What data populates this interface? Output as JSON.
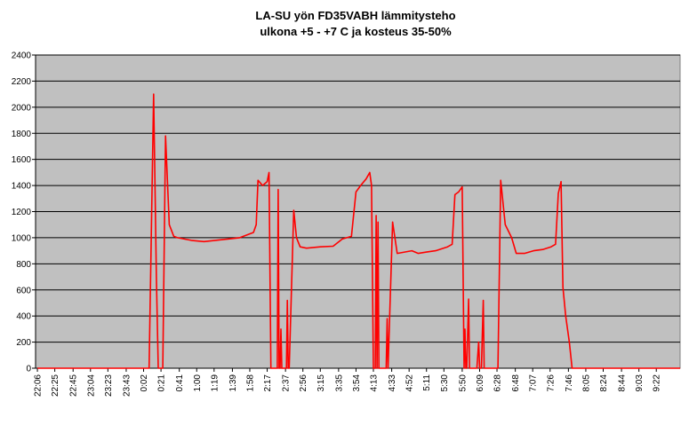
{
  "chart_data": {
    "type": "line",
    "title": [
      "LA-SU yön FD35VABH lämmitysteho",
      "ulkona +5 - +7 C ja kosteus 35-50%"
    ],
    "x": [
      0,
      122,
      127,
      130,
      132,
      137,
      140,
      144,
      149,
      153,
      168,
      182,
      202,
      221,
      236,
      239,
      241,
      246,
      251,
      253,
      255,
      260,
      262,
      263,
      264,
      265,
      266,
      267,
      272,
      273,
      274,
      275,
      280,
      283,
      287,
      294,
      309,
      323,
      333,
      343,
      348,
      353,
      359,
      363,
      365,
      367,
      369,
      370,
      371,
      372,
      373,
      374,
      381,
      382,
      383,
      388,
      393,
      401,
      409,
      416,
      425,
      435,
      448,
      453,
      456,
      460,
      464,
      466,
      467,
      468,
      469,
      471,
      472,
      473,
      480,
      482,
      483,
      485,
      487,
      488,
      503,
      506,
      511,
      518,
      523,
      532,
      542,
      552,
      561,
      566,
      569,
      572,
      574,
      577,
      581,
      584,
      702
    ],
    "series": [
      {
        "name": "lämmitysteho",
        "color": "#ff0000",
        "values": [
          0,
          0,
          2100,
          700,
          0,
          0,
          1780,
          1100,
          1010,
          1000,
          980,
          970,
          985,
          1000,
          1040,
          1100,
          1440,
          1400,
          1430,
          1500,
          0,
          0,
          0,
          1370,
          0,
          0,
          300,
          0,
          0,
          520,
          0,
          0,
          1210,
          1000,
          930,
          920,
          930,
          935,
          990,
          1010,
          1350,
          1400,
          1450,
          1500,
          1400,
          0,
          0,
          1170,
          0,
          1120,
          0,
          0,
          0,
          380,
          0,
          1120,
          880,
          890,
          900,
          880,
          890,
          900,
          930,
          950,
          1330,
          1350,
          1390,
          0,
          300,
          0,
          0,
          530,
          0,
          0,
          0,
          200,
          0,
          0,
          520,
          0,
          0,
          1440,
          1100,
          1000,
          880,
          880,
          900,
          910,
          930,
          950,
          1340,
          1430,
          620,
          400,
          200,
          0,
          0
        ]
      }
    ],
    "xlim": [
      -2,
      702
    ],
    "xticks": [
      {
        "value": 0,
        "label": "22:06"
      },
      {
        "value": 19,
        "label": "22:25"
      },
      {
        "value": 39,
        "label": "22:45"
      },
      {
        "value": 58,
        "label": "23:04"
      },
      {
        "value": 77,
        "label": "23:23"
      },
      {
        "value": 97,
        "label": "23:43"
      },
      {
        "value": 116,
        "label": "0:02"
      },
      {
        "value": 135,
        "label": "0:21"
      },
      {
        "value": 155,
        "label": "0:41"
      },
      {
        "value": 174,
        "label": "1:00"
      },
      {
        "value": 193,
        "label": "1:19"
      },
      {
        "value": 213,
        "label": "1:39"
      },
      {
        "value": 232,
        "label": "1:58"
      },
      {
        "value": 251,
        "label": "2:17"
      },
      {
        "value": 271,
        "label": "2:37"
      },
      {
        "value": 290,
        "label": "2:56"
      },
      {
        "value": 309,
        "label": "3:15"
      },
      {
        "value": 329,
        "label": "3:35"
      },
      {
        "value": 348,
        "label": "3:54"
      },
      {
        "value": 367,
        "label": "4:13"
      },
      {
        "value": 387,
        "label": "4:33"
      },
      {
        "value": 406,
        "label": "4:52"
      },
      {
        "value": 425,
        "label": "5:11"
      },
      {
        "value": 444,
        "label": "5:30"
      },
      {
        "value": 464,
        "label": "5:50"
      },
      {
        "value": 483,
        "label": "6:09"
      },
      {
        "value": 502,
        "label": "6:28"
      },
      {
        "value": 522,
        "label": "6:48"
      },
      {
        "value": 541,
        "label": "7:07"
      },
      {
        "value": 560,
        "label": "7:26"
      },
      {
        "value": 580,
        "label": "7:46"
      },
      {
        "value": 599,
        "label": "8:05"
      },
      {
        "value": 618,
        "label": "8:24"
      },
      {
        "value": 638,
        "label": "8:44"
      },
      {
        "value": 657,
        "label": "9:03"
      },
      {
        "value": 676,
        "label": "9:22"
      }
    ],
    "ylim": [
      0,
      2400
    ],
    "yticks": [
      0,
      200,
      400,
      600,
      800,
      1000,
      1200,
      1400,
      1600,
      1800,
      2000,
      2200,
      2400
    ],
    "grid": true,
    "plot_background": "#c0c0c0"
  }
}
